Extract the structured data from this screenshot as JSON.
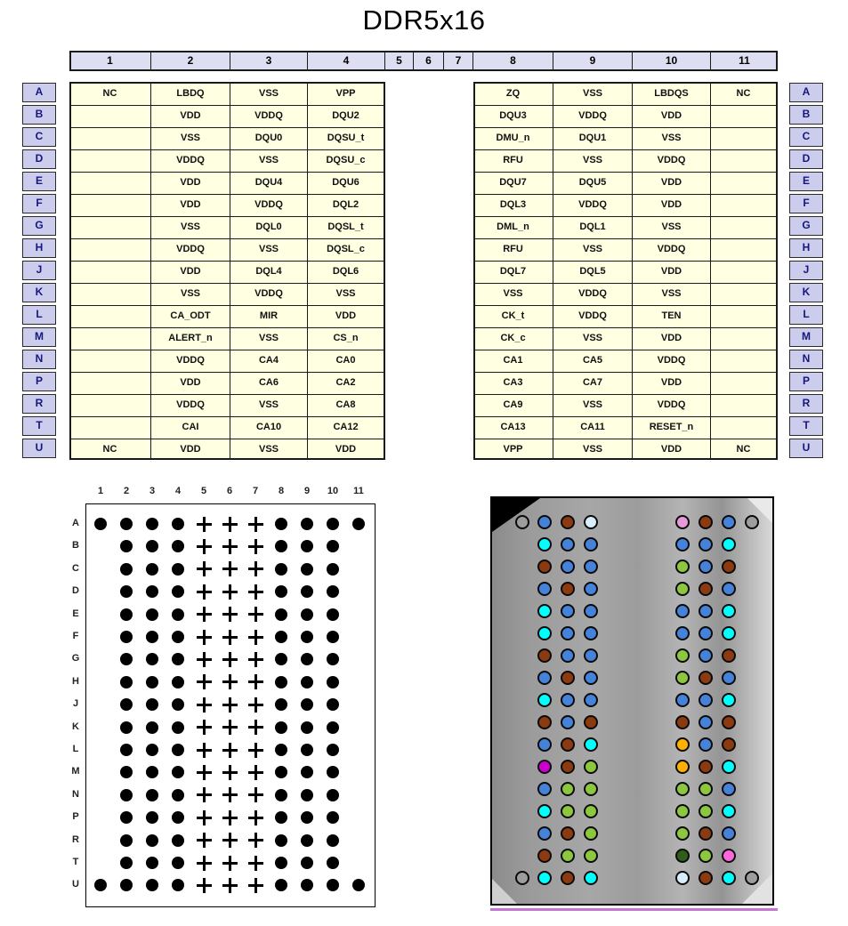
{
  "title": "DDR5x16",
  "table": {
    "columns": [
      "1",
      "2",
      "3",
      "4",
      "5",
      "6",
      "7",
      "8",
      "9",
      "10",
      "11"
    ],
    "rows": [
      {
        "r": "A",
        "cells": {
          "1": "NC",
          "2": "LBDQ",
          "3": "VSS",
          "4": "VPP",
          "8": "ZQ",
          "9": "VSS",
          "10": "LBDQS",
          "11": "NC"
        }
      },
      {
        "r": "B",
        "cells": {
          "1": "",
          "2": "VDD",
          "3": "VDDQ",
          "4": "DQU2",
          "8": "DQU3",
          "9": "VDDQ",
          "10": "VDD",
          "11": ""
        }
      },
      {
        "r": "C",
        "cells": {
          "1": "",
          "2": "VSS",
          "3": "DQU0",
          "4": "DQSU_t",
          "8": "DMU_n",
          "9": "DQU1",
          "10": "VSS",
          "11": ""
        }
      },
      {
        "r": "D",
        "cells": {
          "1": "",
          "2": "VDDQ",
          "3": "VSS",
          "4": "DQSU_c",
          "8": "RFU",
          "9": "VSS",
          "10": "VDDQ",
          "11": ""
        }
      },
      {
        "r": "E",
        "cells": {
          "1": "",
          "2": "VDD",
          "3": "DQU4",
          "4": "DQU6",
          "8": "DQU7",
          "9": "DQU5",
          "10": "VDD",
          "11": ""
        }
      },
      {
        "r": "F",
        "cells": {
          "1": "",
          "2": "VDD",
          "3": "VDDQ",
          "4": "DQL2",
          "8": "DQL3",
          "9": "VDDQ",
          "10": "VDD",
          "11": ""
        }
      },
      {
        "r": "G",
        "cells": {
          "1": "",
          "2": "VSS",
          "3": "DQL0",
          "4": "DQSL_t",
          "8": "DML_n",
          "9": "DQL1",
          "10": "VSS",
          "11": ""
        }
      },
      {
        "r": "H",
        "cells": {
          "1": "",
          "2": "VDDQ",
          "3": "VSS",
          "4": "DQSL_c",
          "8": "RFU",
          "9": "VSS",
          "10": "VDDQ",
          "11": ""
        }
      },
      {
        "r": "J",
        "cells": {
          "1": "",
          "2": "VDD",
          "3": "DQL4",
          "4": "DQL6",
          "8": "DQL7",
          "9": "DQL5",
          "10": "VDD",
          "11": ""
        }
      },
      {
        "r": "K",
        "cells": {
          "1": "",
          "2": "VSS",
          "3": "VDDQ",
          "4": "VSS",
          "8": "VSS",
          "9": "VDDQ",
          "10": "VSS",
          "11": ""
        }
      },
      {
        "r": "L",
        "cells": {
          "1": "",
          "2": "CA_ODT",
          "3": "MIR",
          "4": "VDD",
          "8": "CK_t",
          "9": "VDDQ",
          "10": "TEN",
          "11": ""
        }
      },
      {
        "r": "M",
        "cells": {
          "1": "",
          "2": "ALERT_n",
          "3": "VSS",
          "4": "CS_n",
          "8": "CK_c",
          "9": "VSS",
          "10": "VDD",
          "11": ""
        }
      },
      {
        "r": "N",
        "cells": {
          "1": "",
          "2": "VDDQ",
          "3": "CA4",
          "4": "CA0",
          "8": "CA1",
          "9": "CA5",
          "10": "VDDQ",
          "11": ""
        }
      },
      {
        "r": "P",
        "cells": {
          "1": "",
          "2": "VDD",
          "3": "CA6",
          "4": "CA2",
          "8": "CA3",
          "9": "CA7",
          "10": "VDD",
          "11": ""
        }
      },
      {
        "r": "R",
        "cells": {
          "1": "",
          "2": "VDDQ",
          "3": "VSS",
          "4": "CA8",
          "8": "CA9",
          "9": "VSS",
          "10": "VDDQ",
          "11": ""
        }
      },
      {
        "r": "T",
        "cells": {
          "1": "",
          "2": "CAI",
          "3": "CA10",
          "4": "CA12",
          "8": "CA13",
          "9": "CA11",
          "10": "RESET_n",
          "11": ""
        }
      },
      {
        "r": "U",
        "cells": {
          "1": "NC",
          "2": "VDD",
          "3": "VSS",
          "4": "VDD",
          "8": "VPP",
          "9": "VSS",
          "10": "VDD",
          "11": "NC"
        }
      }
    ]
  },
  "ballout_map": {
    "columns": [
      "1",
      "2",
      "3",
      "4",
      "5",
      "6",
      "7",
      "8",
      "9",
      "10",
      "11"
    ],
    "rows": [
      "A",
      "B",
      "C",
      "D",
      "E",
      "F",
      "G",
      "H",
      "J",
      "K",
      "L",
      "M",
      "N",
      "P",
      "R",
      "T",
      "U"
    ],
    "corner_rows": [
      "A",
      "U"
    ],
    "corner_cols": [
      1,
      11
    ],
    "plus_cols": [
      5,
      6,
      7
    ]
  },
  "package_view": {
    "colors": {
      "blue": "#4583DB",
      "cyan": "#00FFFF",
      "brown": "#8C3A10",
      "green": "#8DC63F",
      "darkgreen": "#2F5E18",
      "orange": "#FFB000",
      "magenta": "#CC00CC",
      "pink": "#FF66DD",
      "plum": "#E899DC",
      "vpp": "#D9EEFB",
      "nc": "#9D9D9D"
    },
    "rows": [
      {
        "r": "A",
        "balls": {
          "1": "nc",
          "2": "blue",
          "3": "brown",
          "4": "vpp",
          "8": "plum",
          "9": "brown",
          "10": "blue",
          "11": "nc"
        }
      },
      {
        "r": "B",
        "balls": {
          "2": "cyan",
          "3": "blue",
          "4": "blue",
          "8": "blue",
          "9": "blue",
          "10": "cyan"
        }
      },
      {
        "r": "C",
        "balls": {
          "2": "brown",
          "3": "blue",
          "4": "blue",
          "8": "green",
          "9": "blue",
          "10": "brown"
        }
      },
      {
        "r": "D",
        "balls": {
          "2": "blue",
          "3": "brown",
          "4": "blue",
          "8": "green",
          "9": "brown",
          "10": "blue"
        }
      },
      {
        "r": "E",
        "balls": {
          "2": "cyan",
          "3": "blue",
          "4": "blue",
          "8": "blue",
          "9": "blue",
          "10": "cyan"
        }
      },
      {
        "r": "F",
        "balls": {
          "2": "cyan",
          "3": "blue",
          "4": "blue",
          "8": "blue",
          "9": "blue",
          "10": "cyan"
        }
      },
      {
        "r": "G",
        "balls": {
          "2": "brown",
          "3": "blue",
          "4": "blue",
          "8": "green",
          "9": "blue",
          "10": "brown"
        }
      },
      {
        "r": "H",
        "balls": {
          "2": "blue",
          "3": "brown",
          "4": "blue",
          "8": "green",
          "9": "brown",
          "10": "blue"
        }
      },
      {
        "r": "J",
        "balls": {
          "2": "cyan",
          "3": "blue",
          "4": "blue",
          "8": "blue",
          "9": "blue",
          "10": "cyan"
        }
      },
      {
        "r": "K",
        "balls": {
          "2": "brown",
          "3": "blue",
          "4": "brown",
          "8": "brown",
          "9": "blue",
          "10": "brown"
        }
      },
      {
        "r": "L",
        "balls": {
          "2": "blue",
          "3": "brown",
          "4": "cyan",
          "8": "orange",
          "9": "blue",
          "10": "brown"
        }
      },
      {
        "r": "M",
        "balls": {
          "2": "magenta",
          "3": "brown",
          "4": "green",
          "8": "orange",
          "9": "brown",
          "10": "cyan"
        }
      },
      {
        "r": "N",
        "balls": {
          "2": "blue",
          "3": "green",
          "4": "green",
          "8": "green",
          "9": "green",
          "10": "blue"
        }
      },
      {
        "r": "P",
        "balls": {
          "2": "cyan",
          "3": "green",
          "4": "green",
          "8": "green",
          "9": "green",
          "10": "cyan"
        }
      },
      {
        "r": "R",
        "balls": {
          "2": "blue",
          "3": "brown",
          "4": "green",
          "8": "green",
          "9": "brown",
          "10": "blue"
        }
      },
      {
        "r": "T",
        "balls": {
          "2": "brown",
          "3": "green",
          "4": "green",
          "8": "darkgreen",
          "9": "green",
          "10": "pink"
        }
      },
      {
        "r": "U",
        "balls": {
          "1": "nc",
          "2": "cyan",
          "3": "brown",
          "4": "cyan",
          "8": "vpp",
          "9": "brown",
          "10": "cyan",
          "11": "nc"
        }
      }
    ]
  }
}
